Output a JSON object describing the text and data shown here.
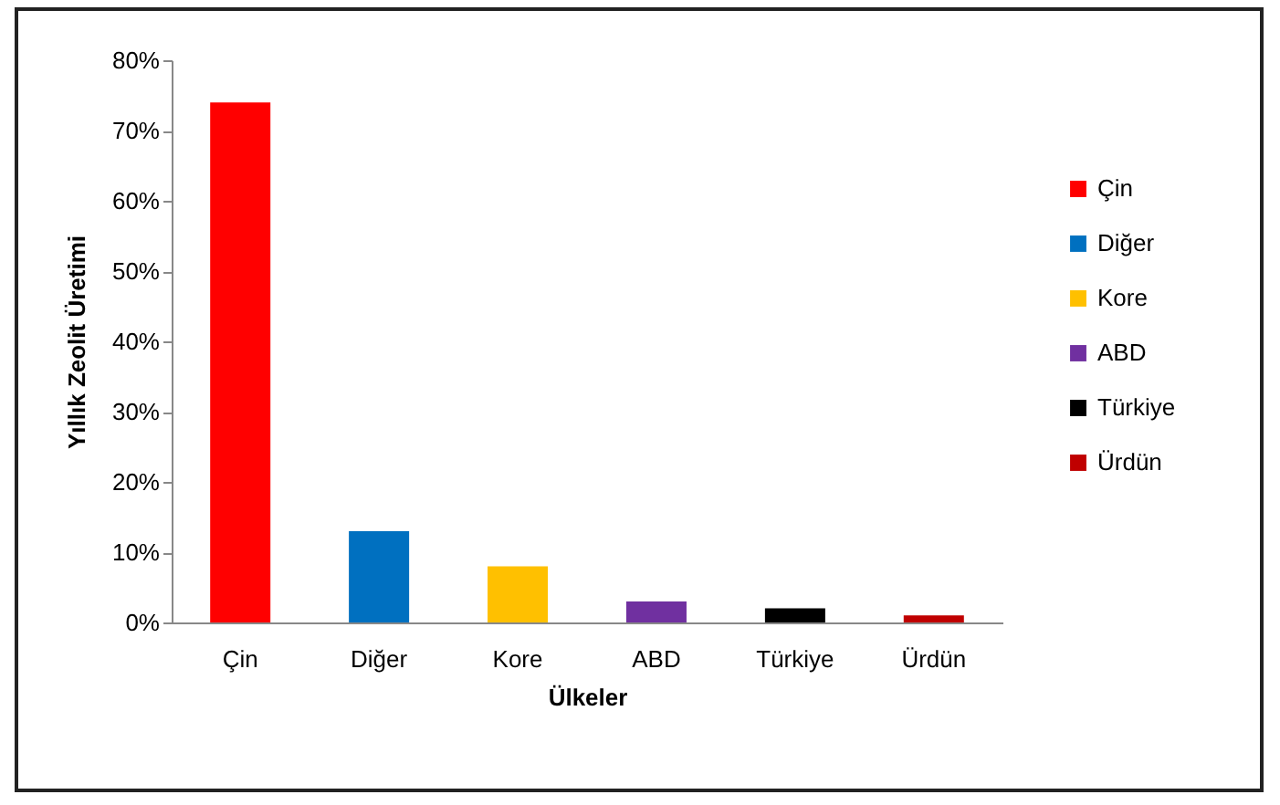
{
  "chart_data": {
    "type": "bar",
    "xlabel": "Ülkeler",
    "ylabel": "Yıllık Zeolit Üretimi",
    "categories": [
      "Çin",
      "Diğer",
      "Kore",
      "ABD",
      "Türkiye",
      "Ürdün"
    ],
    "series": [
      {
        "name": "Çin",
        "color": "#ff0000",
        "values": [
          74,
          null,
          null,
          null,
          null,
          null
        ]
      },
      {
        "name": "Diğer",
        "color": "#0070c0",
        "values": [
          null,
          13,
          null,
          null,
          null,
          null
        ]
      },
      {
        "name": "Kore",
        "color": "#ffc000",
        "values": [
          null,
          null,
          8,
          null,
          null,
          null
        ]
      },
      {
        "name": "ABD",
        "color": "#7030a0",
        "values": [
          null,
          null,
          null,
          3,
          null,
          null
        ]
      },
      {
        "name": "Türkiye",
        "color": "#000000",
        "values": [
          null,
          null,
          null,
          null,
          2,
          null
        ]
      },
      {
        "name": "Ürdün",
        "color": "#c00000",
        "values": [
          null,
          null,
          null,
          null,
          null,
          1
        ]
      }
    ],
    "ylim": [
      0,
      80
    ],
    "yticks": [
      {
        "value": 0,
        "label": "0%"
      },
      {
        "value": 10,
        "label": "10%"
      },
      {
        "value": 20,
        "label": "20%"
      },
      {
        "value": 30,
        "label": "30%"
      },
      {
        "value": 40,
        "label": "40%"
      },
      {
        "value": 50,
        "label": "50%"
      },
      {
        "value": 60,
        "label": "60%"
      },
      {
        "value": 70,
        "label": "70%"
      },
      {
        "value": 80,
        "label": "80%"
      }
    ],
    "grid": false,
    "legend": "right"
  }
}
